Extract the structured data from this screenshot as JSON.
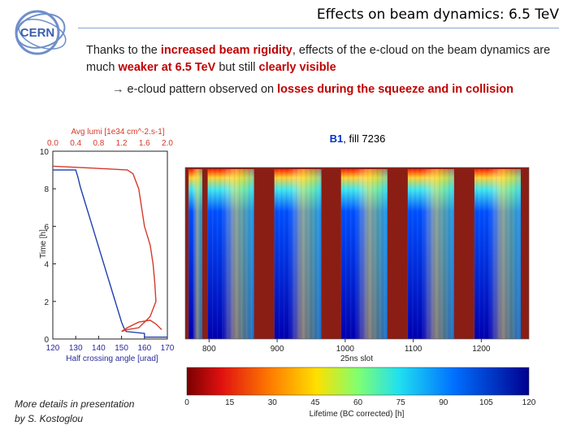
{
  "slide": {
    "title": "Effects on beam dynamics: 6.5 TeV",
    "logo_text": "CERN",
    "body_intro": "Thanks to the ",
    "body_rigidity": "increased beam rigidity",
    "body_mid": ", effects of the e-cloud on the beam dynamics are much ",
    "body_weaker": "weaker at 6.5 TeV",
    "body_still": " but still ",
    "body_visible": "clearly visible",
    "arrow": "→",
    "losses_intro": " e-cloud pattern observed on ",
    "losses_red": "losses during the squeeze and in collision",
    "fig_title_beam": "B1",
    "fig_title_rest": ", fill 7236",
    "note_line1": "More details in presentation",
    "note_line2": "by S. Kostoglou"
  },
  "chart_data": [
    {
      "type": "line",
      "title": "Avg lumi [1e34 cm^-2.s-1]",
      "top_axis_ticks": [
        "0.0",
        "0.4",
        "0.8",
        "1.2",
        "1.6",
        "2.0"
      ],
      "x_ticks": [
        "120",
        "130",
        "140",
        "150",
        "160",
        "170"
      ],
      "y_ticks": [
        "0",
        "2",
        "4",
        "6",
        "8",
        "10"
      ],
      "xlabel": "Half crossing angle [urad]",
      "ylabel": "Time [h]",
      "xlim": [
        120,
        170
      ],
      "ylim": [
        0,
        10
      ],
      "top_xlim": [
        0,
        2
      ],
      "series": [
        {
          "name": "Half crossing angle",
          "color": "#1f3fb0",
          "x": [
            120,
            130,
            131,
            132,
            133,
            134,
            135,
            136,
            137,
            138,
            139,
            140,
            141,
            142,
            143,
            144,
            145,
            146,
            147,
            148,
            149,
            150,
            151,
            152,
            160,
            160,
            170
          ],
          "y": [
            9.0,
            9.0,
            8.6,
            8.1,
            7.7,
            7.3,
            6.9,
            6.5,
            6.1,
            5.7,
            5.3,
            4.9,
            4.5,
            4.1,
            3.7,
            3.3,
            2.9,
            2.5,
            2.1,
            1.7,
            1.3,
            0.9,
            0.6,
            0.4,
            0.3,
            0.1,
            0.1
          ]
        },
        {
          "name": "Avg lumi",
          "color": "#d43a2a",
          "x": [
            0.0,
            0.7,
            1.3,
            1.4,
            1.5,
            1.55,
            1.6,
            1.7,
            1.75,
            1.78,
            1.8,
            1.75,
            1.7,
            1.6,
            1.5,
            1.3,
            1.2,
            1.3,
            1.5,
            1.7,
            1.8,
            1.9
          ],
          "y": [
            9.2,
            9.1,
            9.0,
            8.8,
            8.0,
            7.0,
            6.0,
            5.0,
            4.0,
            3.0,
            2.0,
            1.6,
            1.2,
            0.9,
            0.6,
            0.5,
            0.4,
            0.6,
            0.9,
            1.0,
            0.8,
            0.5
          ]
        }
      ]
    },
    {
      "type": "heatmap",
      "title": "B1, fill 7236",
      "x_ticks": [
        "800",
        "900",
        "1000",
        "1100",
        "1200"
      ],
      "xlim": [
        765,
        1270
      ],
      "xlabel": "25ns slot",
      "y_range_h": [
        0,
        9
      ],
      "bunch_trains": [
        [
          770,
          790
        ],
        [
          798,
          866
        ],
        [
          896,
          965
        ],
        [
          994,
          1062
        ],
        [
          1092,
          1160
        ],
        [
          1190,
          1258
        ]
      ],
      "colorbar": {
        "ticks": [
          "0",
          "15",
          "30",
          "45",
          "60",
          "75",
          "90",
          "105",
          "120"
        ],
        "range": [
          0,
          120
        ],
        "label": "Lifetime (BC corrected) [h]"
      }
    }
  ]
}
